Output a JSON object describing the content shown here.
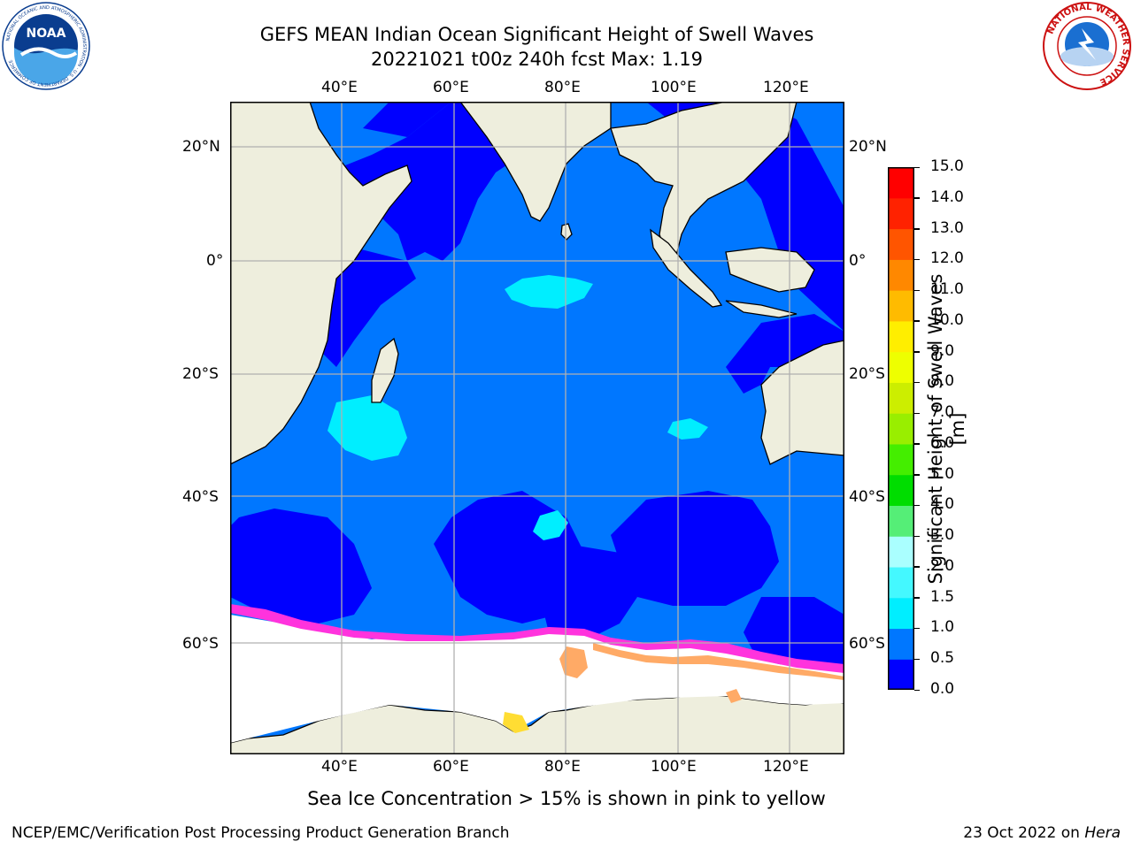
{
  "header": {
    "title_line1": "GEFS MEAN Indian Ocean Significant Height of Swell Waves",
    "title_line2": "20221021 t00z 240h fcst   Max: 1.19"
  },
  "logos": {
    "noaa": {
      "icon": "noaa-seal-icon",
      "text": "NOAA",
      "ring_text": "NATIONAL OCEANIC AND ATMOSPHERIC ADMINISTRATION · U.S. DEPARTMENT OF COMMERCE"
    },
    "nws": {
      "icon": "nws-seal-icon",
      "ring_text": "NATIONAL WEATHER SERVICE"
    }
  },
  "map": {
    "lon_ticks": [
      "40°E",
      "60°E",
      "80°E",
      "100°E",
      "120°E"
    ],
    "lat_ticks_left": [
      "20°N",
      "0°",
      "20°S",
      "40°S",
      "60°S"
    ],
    "lat_ticks_right": [
      "20°N",
      "0°",
      "20°S",
      "40°S",
      "60°S"
    ],
    "colors": {
      "land": "#eeeedd",
      "swell_0_0_5": "#0000ff",
      "swell_0_5_1_0": "#0077ff",
      "swell_1_0_1_5": "#00eeff",
      "sea_ice_low": "#ff33dd",
      "sea_ice_mid": "#ffaa66",
      "sea_ice_high": "#ffdd33",
      "gridline": "#b0b0b0"
    }
  },
  "colorbar": {
    "label": "Significant Height of Swell Waves [m]",
    "ticks": [
      "0.0",
      "0.5",
      "1.0",
      "1.5",
      "2.0",
      "3.0",
      "4.0",
      "5.0",
      "6.0",
      "7.0",
      "8.0",
      "9.0",
      "10.0",
      "11.0",
      "12.0",
      "13.0",
      "14.0",
      "15.0"
    ],
    "colors": [
      "#0000ff",
      "#0077ff",
      "#00eeff",
      "#44f8ff",
      "#aaffff",
      "#55ee77",
      "#00dd00",
      "#44ee00",
      "#99ee00",
      "#ccee00",
      "#eeff00",
      "#ffee00",
      "#ffbb00",
      "#ff8800",
      "#ff5500",
      "#ff2200",
      "#ff0000"
    ]
  },
  "caption": "Sea Ice Concentration > 15% is shown in pink to yellow",
  "footer": {
    "left": "NCEP/EMC/Verification Post Processing Product Generation Branch",
    "right_prefix": "23 Oct 2022 on",
    "right_machine": "Hera"
  }
}
